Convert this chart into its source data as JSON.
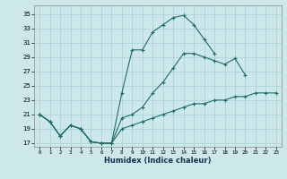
{
  "xlabel": "Humidex (Indice chaleur)",
  "background_color": "#cce8ea",
  "grid_color": "#aacfd4",
  "line_color": "#1e6e66",
  "xlim": [
    -0.5,
    23.5
  ],
  "ylim": [
    16.5,
    36.2
  ],
  "xticks": [
    0,
    1,
    2,
    3,
    4,
    5,
    6,
    7,
    8,
    9,
    10,
    11,
    12,
    13,
    14,
    15,
    16,
    17,
    18,
    19,
    20,
    21,
    22,
    23
  ],
  "yticks": [
    17,
    19,
    21,
    23,
    25,
    27,
    29,
    31,
    33,
    35
  ],
  "line1_x": [
    0,
    1,
    2,
    3,
    4,
    5,
    6,
    7,
    8,
    9,
    10,
    11,
    12,
    13,
    14,
    15,
    16,
    17
  ],
  "line1_y": [
    21.0,
    20.0,
    18.0,
    19.5,
    19.0,
    17.2,
    17.0,
    17.0,
    24.0,
    30.0,
    30.0,
    32.5,
    33.5,
    34.5,
    34.8,
    33.5,
    31.5,
    29.5
  ],
  "line2_x": [
    0,
    1,
    2,
    3,
    4,
    5,
    6,
    7,
    8,
    9,
    10,
    11,
    12,
    13,
    14,
    15,
    16,
    17,
    18,
    19,
    20
  ],
  "line2_y": [
    21.0,
    20.0,
    18.0,
    19.5,
    19.0,
    17.2,
    17.0,
    17.0,
    20.5,
    21.0,
    22.0,
    24.0,
    25.5,
    27.5,
    29.5,
    29.5,
    29.0,
    28.5,
    28.0,
    28.8,
    26.5
  ],
  "line3_x": [
    0,
    1,
    2,
    3,
    4,
    5,
    6,
    7,
    8,
    9,
    10,
    11,
    12,
    13,
    14,
    15,
    16,
    17,
    18,
    19,
    20,
    21,
    22,
    23
  ],
  "line3_y": [
    21.0,
    20.0,
    18.0,
    19.5,
    19.0,
    17.2,
    17.0,
    17.0,
    19.0,
    19.5,
    20.0,
    20.5,
    21.0,
    21.5,
    22.0,
    22.5,
    22.5,
    23.0,
    23.0,
    23.5,
    23.5,
    24.0,
    24.0,
    24.0
  ]
}
